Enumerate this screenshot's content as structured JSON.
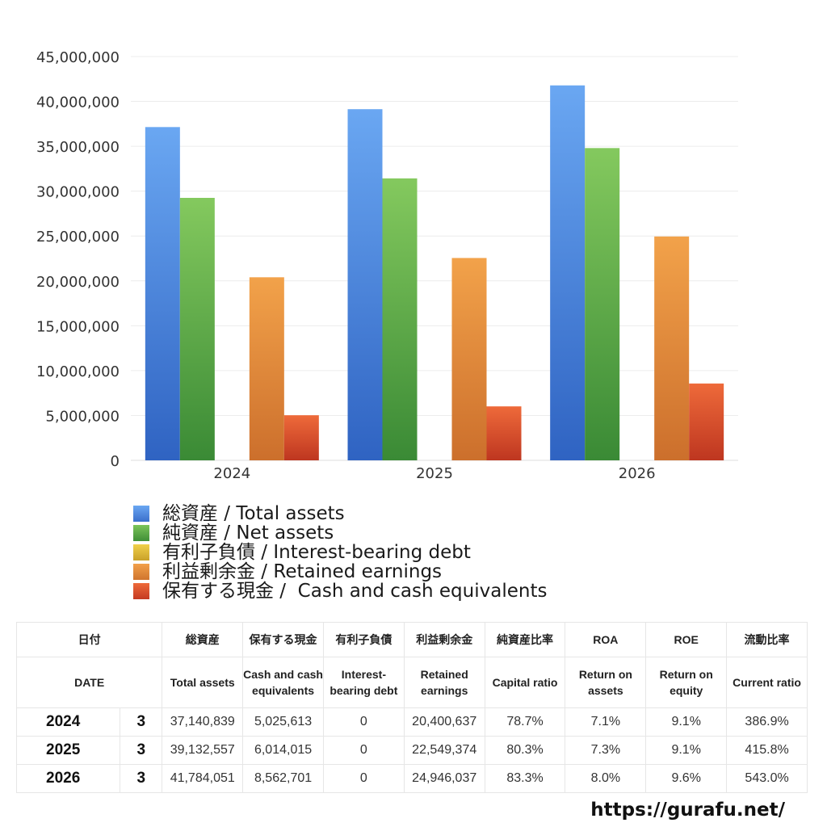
{
  "chart_data": {
    "type": "bar",
    "categories": [
      "2024",
      "2025",
      "2026"
    ],
    "series": [
      {
        "name": "総資産 / Total assets",
        "color": "#4a87e0",
        "values": [
          37140839,
          39132557,
          41784051
        ]
      },
      {
        "name": "純資産 / Net assets",
        "color": "#5aaa45",
        "values": [
          29250000,
          31420000,
          34800000
        ]
      },
      {
        "name": "有利子負債 / Interest-bearing debt",
        "color": "#d8b736",
        "values": [
          0,
          0,
          0
        ]
      },
      {
        "name": "利益剰余金 / Retained earnings",
        "color": "#e08a35",
        "values": [
          20400637,
          22549374,
          24946037
        ]
      },
      {
        "name": "保有する現金 /  Cash and cash equivalents",
        "color": "#dc4a2a",
        "values": [
          5025613,
          6014015,
          8562701
        ]
      }
    ],
    "yticks": [
      "0",
      "5,000,000",
      "10,000,000",
      "15,000,000",
      "20,000,000",
      "25,000,000",
      "30,000,000",
      "35,000,000",
      "40,000,000",
      "45,000,000"
    ],
    "ylim": [
      0,
      45000000
    ],
    "grid": true,
    "legend_position": "bottom-left"
  },
  "table": {
    "headers_jp": [
      "日付",
      "",
      "総資産",
      "保有する現金",
      "有利子負債",
      "利益剰余金",
      "純資産比率",
      "ROA",
      "ROE",
      "流動比率"
    ],
    "headers_en": [
      "DATE",
      "",
      "Total assets",
      "Cash and cash equivalents",
      "Interest-bearing debt",
      "Retained earnings",
      "Capital ratio",
      "Return on assets",
      "Return on equity",
      "Current ratio"
    ],
    "rows": [
      [
        "2024",
        "3",
        "37,140,839",
        "5,025,613",
        "0",
        "20,400,637",
        "78.7%",
        "7.1%",
        "9.1%",
        "386.9%"
      ],
      [
        "2025",
        "3",
        "39,132,557",
        "6,014,015",
        "0",
        "22,549,374",
        "80.3%",
        "7.3%",
        "9.1%",
        "415.8%"
      ],
      [
        "2026",
        "3",
        "41,784,051",
        "8,562,701",
        "0",
        "24,946,037",
        "83.3%",
        "8.0%",
        "9.6%",
        "543.0%"
      ]
    ]
  },
  "footer": {
    "url": "https://gurafu.net/"
  }
}
